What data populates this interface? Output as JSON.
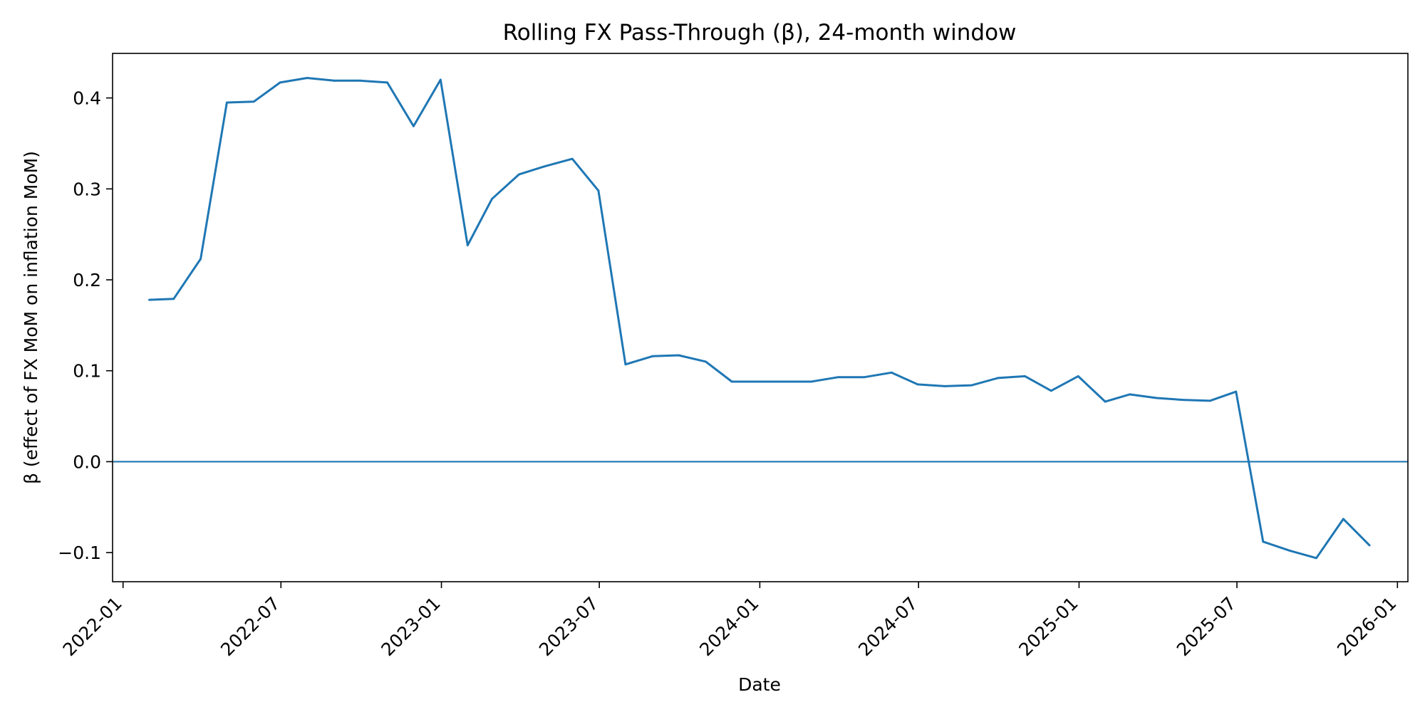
{
  "chart_data": {
    "type": "line",
    "title": "Rolling FX Pass-Through (β), 24-month window",
    "xlabel": "Date",
    "ylabel": "β (effect of FX MoM on inflation MoM)",
    "xlim": [
      "2021-12-20",
      "2026-01-13"
    ],
    "ylim": [
      -0.132,
      0.449
    ],
    "x_ticks": [
      "2022-01",
      "2022-07",
      "2023-01",
      "2023-07",
      "2024-01",
      "2024-07",
      "2025-01",
      "2025-07",
      "2026-01"
    ],
    "x_tick_dates": [
      "2022-01-01",
      "2022-07-01",
      "2023-01-01",
      "2023-07-01",
      "2024-01-01",
      "2024-07-01",
      "2025-01-01",
      "2025-07-01",
      "2026-01-01"
    ],
    "y_ticks": [
      -0.1,
      0.0,
      0.1,
      0.2,
      0.3,
      0.4
    ],
    "y_tick_labels": [
      "−0.1",
      "0.0",
      "0.1",
      "0.2",
      "0.3",
      "0.4"
    ],
    "hline": 0.0,
    "grid": false,
    "line_color": "#1f77b4",
    "series": [
      {
        "x": [
          "2022-01-31",
          "2022-02-28",
          "2022-03-31",
          "2022-04-30",
          "2022-05-31",
          "2022-06-30",
          "2022-07-31",
          "2022-08-31",
          "2022-09-30",
          "2022-10-31",
          "2022-11-30",
          "2022-12-31",
          "2023-01-31",
          "2023-02-28",
          "2023-03-31",
          "2023-04-30",
          "2023-05-31",
          "2023-06-30",
          "2023-07-31",
          "2023-08-31",
          "2023-09-30",
          "2023-10-31",
          "2023-11-30",
          "2023-12-31",
          "2024-01-31",
          "2024-02-29",
          "2024-03-31",
          "2024-04-30",
          "2024-05-31",
          "2024-06-30",
          "2024-07-31",
          "2024-08-31",
          "2024-09-30",
          "2024-10-31",
          "2024-11-30",
          "2024-12-31",
          "2025-01-31",
          "2025-02-28",
          "2025-03-31",
          "2025-04-30",
          "2025-05-31",
          "2025-06-30",
          "2025-07-31",
          "2025-08-31",
          "2025-09-30",
          "2025-10-31",
          "2025-11-30"
        ],
        "values": [
          0.178,
          0.179,
          0.223,
          0.395,
          0.396,
          0.417,
          0.422,
          0.419,
          0.419,
          0.417,
          0.369,
          0.42,
          0.238,
          0.289,
          0.316,
          0.325,
          0.333,
          0.298,
          0.107,
          0.116,
          0.117,
          0.11,
          0.088,
          0.088,
          0.088,
          0.088,
          0.093,
          0.093,
          0.098,
          0.085,
          0.083,
          0.084,
          0.092,
          0.094,
          0.078,
          0.094,
          0.066,
          0.074,
          0.07,
          0.068,
          0.067,
          0.077,
          -0.088,
          -0.098,
          -0.106,
          -0.063,
          -0.092
        ]
      }
    ]
  }
}
